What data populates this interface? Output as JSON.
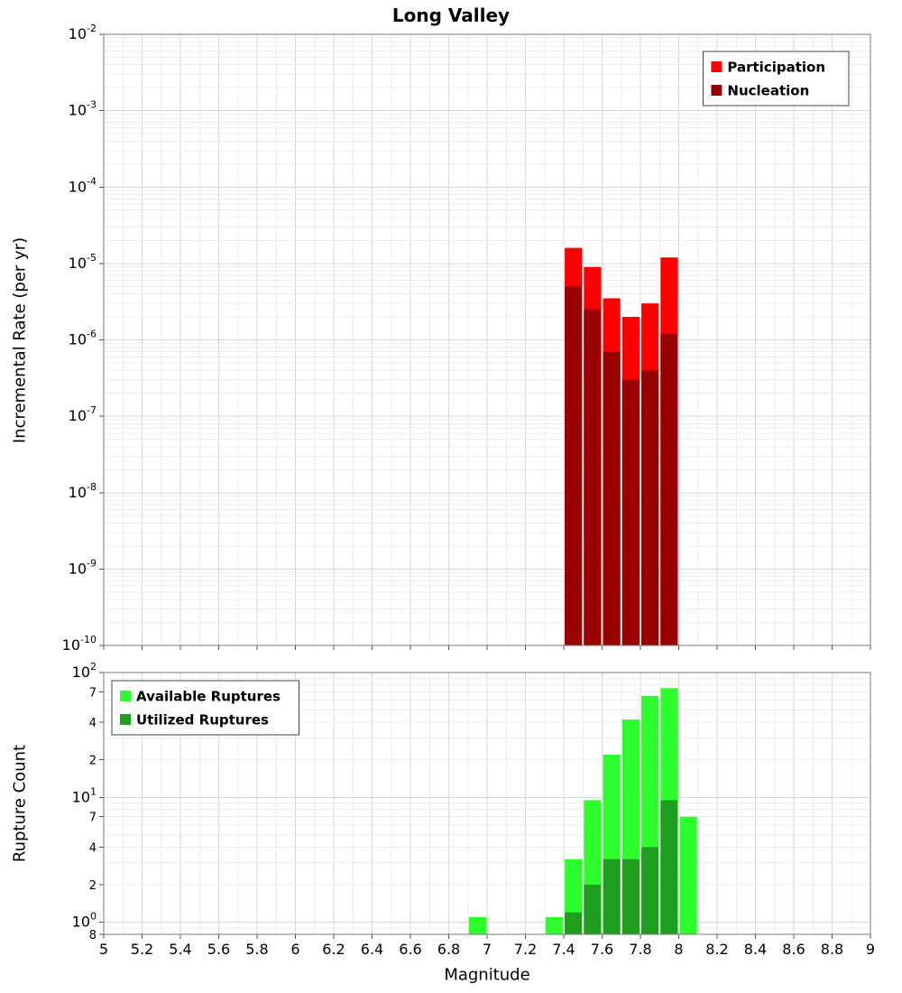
{
  "chart_data": [
    {
      "type": "bar",
      "title": "Long Valley",
      "ylabel": "Incremental Rate (per yr)",
      "y_scale": "log",
      "y_range": [
        1e-10,
        0.01
      ],
      "x_range": [
        5,
        9
      ],
      "x_tick_step": 0.2,
      "bin_width": 0.1,
      "grid": true,
      "legend_position": "top-right",
      "categories": [
        7.45,
        7.55,
        7.65,
        7.75,
        7.85,
        7.95
      ],
      "series": [
        {
          "name": "Participation",
          "color": "#ff0000",
          "values": [
            1.6e-05,
            9e-06,
            3.5e-06,
            2e-06,
            3e-06,
            1.2e-05
          ]
        },
        {
          "name": "Nucleation",
          "color": "#990000",
          "values": [
            5e-06,
            2.5e-06,
            7e-07,
            3e-07,
            4e-07,
            1.2e-06
          ]
        }
      ],
      "y_ticks": [
        {
          "value": 0.01,
          "label": "10^-2"
        },
        {
          "value": 0.001,
          "label": "10^-3"
        },
        {
          "value": 0.0001,
          "label": "10^-4"
        },
        {
          "value": 1e-05,
          "label": "10^-5"
        },
        {
          "value": 1e-06,
          "label": "10^-6"
        },
        {
          "value": 1e-07,
          "label": "10^-7"
        },
        {
          "value": 1e-08,
          "label": "10^-8"
        },
        {
          "value": 1e-09,
          "label": "10^-9"
        },
        {
          "value": 1e-10,
          "label": "10^-10"
        }
      ]
    },
    {
      "type": "bar",
      "title": "",
      "ylabel": "Rupture Count",
      "xlabel": "Magnitude",
      "y_scale": "log",
      "y_range": [
        0.8,
        100
      ],
      "x_range": [
        5,
        9
      ],
      "x_tick_step": 0.2,
      "bin_width": 0.1,
      "grid": true,
      "legend_position": "top-left",
      "categories": [
        6.95,
        7.35,
        7.45,
        7.55,
        7.65,
        7.75,
        7.85,
        7.95,
        8.05
      ],
      "series": [
        {
          "name": "Available Ruptures",
          "color": "#2dff2d",
          "values": [
            1.1,
            1.1,
            3.2,
            9.5,
            22,
            42,
            65,
            75,
            7
          ]
        },
        {
          "name": "Utilized Ruptures",
          "color": "#1e9e1e",
          "values": [
            null,
            null,
            1.2,
            2,
            3.2,
            3.2,
            4,
            9.5,
            null
          ]
        }
      ],
      "y_ticks": [
        {
          "value": 100,
          "label": "10^2"
        },
        {
          "value": 70,
          "label": "7"
        },
        {
          "value": 40,
          "label": "4"
        },
        {
          "value": 20,
          "label": "2"
        },
        {
          "value": 10,
          "label": "10^1"
        },
        {
          "value": 7,
          "label": "7"
        },
        {
          "value": 4,
          "label": "4"
        },
        {
          "value": 2,
          "label": "2"
        },
        {
          "value": 1,
          "label": "10^0"
        },
        {
          "value": 0.8,
          "label": "8"
        }
      ]
    }
  ]
}
